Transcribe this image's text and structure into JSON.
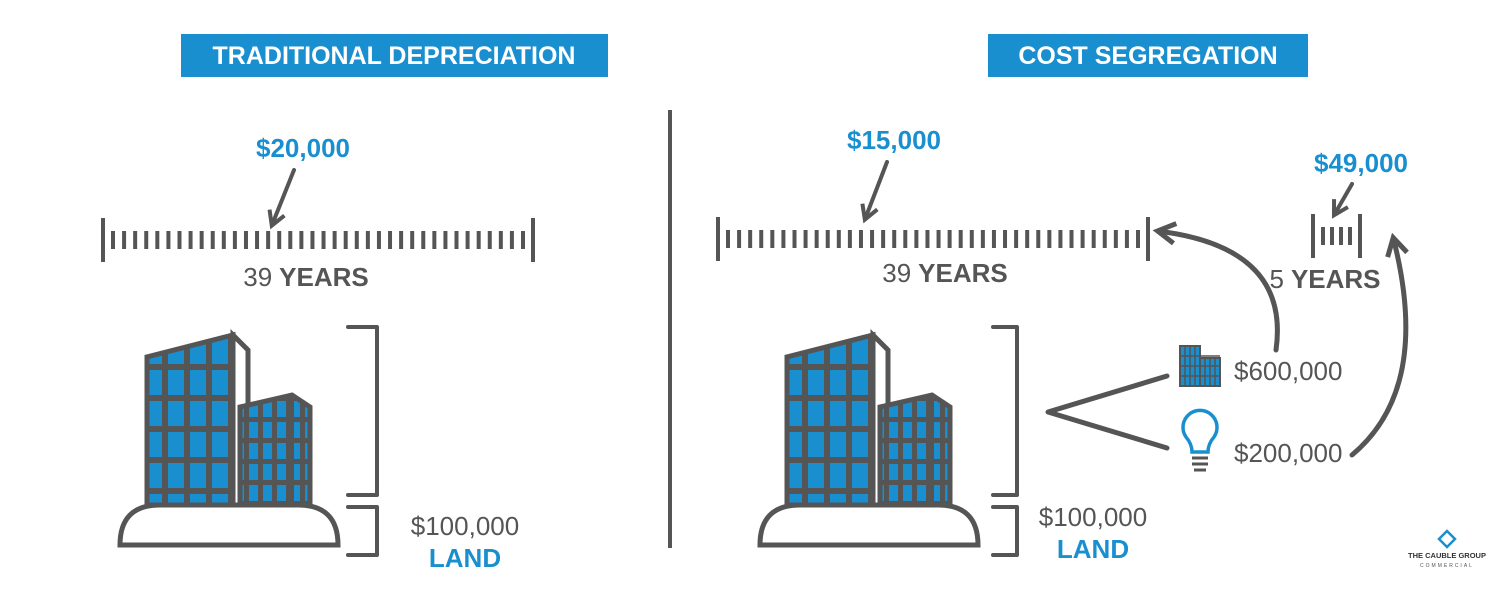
{
  "left": {
    "title": "TRADITIONAL DEPRECIATION",
    "annual_amount": "$20,000",
    "period_number": "39",
    "period_unit": "YEARS",
    "land_value": "$100,000",
    "land_label": "LAND"
  },
  "right": {
    "title": "COST SEGREGATION",
    "long_amount": "$15,000",
    "long_period_number": "39",
    "long_period_unit": "YEARS",
    "short_amount": "$49,000",
    "short_period_number": "5",
    "short_period_unit": "YEARS",
    "components": [
      {
        "value": "$600,000"
      },
      {
        "value": "$200,000"
      }
    ],
    "land_value": "$100,000",
    "land_label": "LAND"
  },
  "logo": {
    "name": "THE CAUBLE GROUP",
    "tagline": "COMMERCIAL"
  }
}
